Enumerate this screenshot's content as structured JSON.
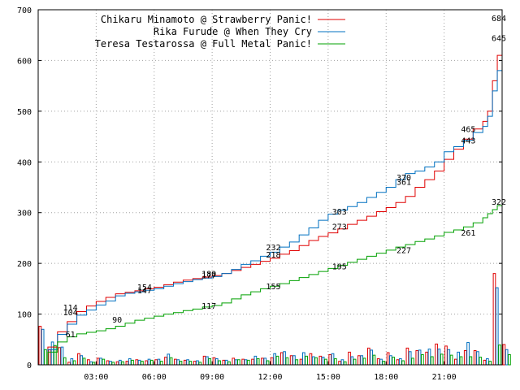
{
  "chart_data": {
    "type": "line",
    "title": "",
    "xlabel": "",
    "ylabel": "",
    "xlim": [
      0,
      1440
    ],
    "ylim": [
      0,
      700
    ],
    "grid": true,
    "legend_position": "top-right",
    "x_ticks": [
      {
        "value": 180,
        "label": "03:00"
      },
      {
        "value": 360,
        "label": "06:00"
      },
      {
        "value": 540,
        "label": "09:00"
      },
      {
        "value": 720,
        "label": "12:00"
      },
      {
        "value": 900,
        "label": "15:00"
      },
      {
        "value": 1080,
        "label": "18:00"
      },
      {
        "value": 1260,
        "label": "21:00"
      }
    ],
    "y_ticks": [
      0,
      100,
      200,
      300,
      400,
      500,
      600,
      700
    ],
    "series": [
      {
        "name": "Chikaru Minamoto @ Strawberry Panic!",
        "color": "#e00000",
        "x": [
          0,
          30,
          60,
          90,
          120,
          150,
          180,
          210,
          240,
          270,
          300,
          330,
          360,
          390,
          420,
          450,
          480,
          510,
          540,
          570,
          600,
          630,
          660,
          690,
          720,
          750,
          780,
          810,
          840,
          870,
          900,
          930,
          960,
          990,
          1020,
          1050,
          1080,
          1110,
          1140,
          1170,
          1200,
          1230,
          1260,
          1290,
          1320,
          1350,
          1380,
          1395,
          1410,
          1425,
          1440
        ],
        "values": [
          0,
          35,
          65,
          85,
          105,
          116,
          125,
          133,
          140,
          143,
          146,
          150,
          153,
          158,
          163,
          167,
          170,
          173,
          176,
          180,
          186,
          192,
          198,
          204,
          210,
          218,
          225,
          235,
          245,
          253,
          260,
          268,
          277,
          285,
          293,
          302,
          310,
          320,
          332,
          350,
          365,
          382,
          405,
          425,
          445,
          465,
          480,
          500,
          560,
          610,
          684
        ]
      },
      {
        "name": "Rika Furude @ When They Cry",
        "color": "#0070c0",
        "x": [
          0,
          30,
          60,
          90,
          120,
          150,
          180,
          210,
          240,
          270,
          300,
          330,
          360,
          390,
          420,
          450,
          480,
          510,
          540,
          570,
          600,
          630,
          660,
          690,
          720,
          750,
          780,
          810,
          840,
          870,
          900,
          930,
          960,
          990,
          1020,
          1050,
          1080,
          1110,
          1140,
          1170,
          1200,
          1230,
          1260,
          1290,
          1320,
          1350,
          1380,
          1395,
          1410,
          1425,
          1440
        ],
        "values": [
          0,
          30,
          60,
          80,
          98,
          108,
          118,
          126,
          136,
          141,
          144,
          147,
          150,
          155,
          160,
          164,
          168,
          171,
          174,
          180,
          188,
          198,
          205,
          214,
          222,
          232,
          242,
          256,
          270,
          285,
          297,
          305,
          312,
          320,
          330,
          340,
          350,
          365,
          377,
          382,
          390,
          400,
          420,
          430,
          443,
          458,
          470,
          490,
          540,
          580,
          645
        ]
      },
      {
        "name": "Teresa Testarossa @ Full Metal Panic!",
        "color": "#00a000",
        "x": [
          0,
          30,
          60,
          90,
          120,
          150,
          180,
          210,
          240,
          270,
          300,
          330,
          360,
          390,
          420,
          450,
          480,
          510,
          540,
          570,
          600,
          630,
          660,
          690,
          720,
          750,
          780,
          810,
          840,
          870,
          900,
          930,
          960,
          990,
          1020,
          1050,
          1080,
          1110,
          1140,
          1170,
          1200,
          1230,
          1260,
          1290,
          1320,
          1350,
          1380,
          1395,
          1410,
          1425,
          1440
        ],
        "values": [
          0,
          25,
          45,
          55,
          61,
          64,
          67,
          71,
          76,
          82,
          88,
          92,
          96,
          100,
          103,
          107,
          110,
          114,
          117,
          122,
          130,
          138,
          144,
          150,
          155,
          160,
          166,
          172,
          178,
          184,
          190,
          196,
          202,
          208,
          214,
          220,
          226,
          232,
          237,
          243,
          248,
          254,
          261,
          266,
          272,
          280,
          290,
          298,
          306,
          314,
          322
        ]
      }
    ],
    "annotations": [
      {
        "x": 100,
        "y": 114,
        "text": "114"
      },
      {
        "x": 100,
        "y": 104,
        "text": "104"
      },
      {
        "x": 100,
        "y": 61,
        "text": "61"
      },
      {
        "x": 245,
        "y": 90,
        "text": "90"
      },
      {
        "x": 330,
        "y": 154,
        "text": "154"
      },
      {
        "x": 330,
        "y": 147,
        "text": "147"
      },
      {
        "x": 530,
        "y": 180,
        "text": "180"
      },
      {
        "x": 530,
        "y": 177,
        "text": "177"
      },
      {
        "x": 530,
        "y": 117,
        "text": "117"
      },
      {
        "x": 730,
        "y": 232,
        "text": "232"
      },
      {
        "x": 730,
        "y": 218,
        "text": "218"
      },
      {
        "x": 730,
        "y": 155,
        "text": "155"
      },
      {
        "x": 935,
        "y": 303,
        "text": "303"
      },
      {
        "x": 935,
        "y": 273,
        "text": "273"
      },
      {
        "x": 935,
        "y": 195,
        "text": "195"
      },
      {
        "x": 1135,
        "y": 370,
        "text": "370"
      },
      {
        "x": 1135,
        "y": 361,
        "text": "361"
      },
      {
        "x": 1135,
        "y": 227,
        "text": "227"
      },
      {
        "x": 1335,
        "y": 465,
        "text": "465"
      },
      {
        "x": 1335,
        "y": 443,
        "text": "443"
      },
      {
        "x": 1335,
        "y": 261,
        "text": "261"
      },
      {
        "x": 1430,
        "y": 684,
        "text": "684"
      },
      {
        "x": 1430,
        "y": 645,
        "text": "645"
      },
      {
        "x": 1430,
        "y": 322,
        "text": "322"
      }
    ],
    "hourly_bars": {
      "type": "bar",
      "bin_minutes": 30,
      "series_values": [
        [
          76,
          30,
          34,
          5,
          22,
          10,
          13,
          8,
          6,
          7,
          10,
          8,
          10,
          15,
          11,
          9,
          7,
          17,
          14,
          9,
          13,
          11,
          11,
          13,
          14,
          24,
          18,
          11,
          22,
          17,
          20,
          7,
          25,
          18,
          33,
          12,
          24,
          10,
          33,
          28,
          25,
          41,
          37,
          11,
          28,
          28,
          9,
          180,
          40
        ],
        [
          70,
          45,
          35,
          12,
          18,
          6,
          13,
          7,
          9,
          12,
          9,
          11,
          11,
          21,
          10,
          10,
          8,
          16,
          12,
          9,
          10,
          10,
          17,
          13,
          22,
          26,
          18,
          24,
          16,
          15,
          22,
          10,
          16,
          18,
          29,
          11,
          18,
          12,
          26,
          29,
          31,
          31,
          30,
          25,
          44,
          26,
          12,
          152,
          30
        ],
        [
          30,
          38,
          14,
          8,
          13,
          5,
          11,
          5,
          6,
          9,
          7,
          9,
          7,
          14,
          7,
          7,
          5,
          12,
          8,
          6,
          10,
          9,
          12,
          8,
          17,
          14,
          10,
          17,
          14,
          11,
          12,
          6,
          11,
          13,
          19,
          7,
          15,
          8,
          13,
          20,
          16,
          21,
          19,
          16,
          16,
          15,
          7,
          39,
          20
        ]
      ]
    }
  }
}
